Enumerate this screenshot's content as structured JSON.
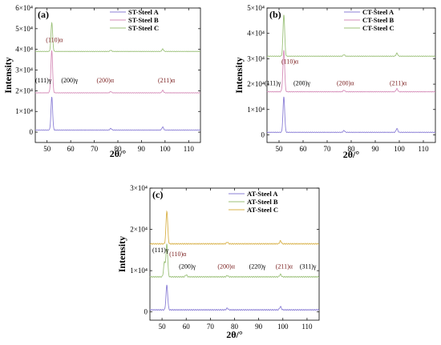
{
  "chart_data": [
    {
      "type": "line",
      "panel_label": "(a)",
      "xlabel": "2θ/°",
      "ylabel": "Intensity",
      "xlim": [
        45,
        115
      ],
      "ylim": [
        -5000,
        60000
      ],
      "x_ticks": [
        "50",
        "60",
        "70",
        "80",
        "90",
        "100",
        "110"
      ],
      "y_ticks": [
        {
          "v": 0,
          "label": "0"
        },
        {
          "v": 10000,
          "label": "1×10⁴"
        },
        {
          "v": 20000,
          "label": "2×10⁴"
        },
        {
          "v": 30000,
          "label": "3×10⁴"
        },
        {
          "v": 40000,
          "label": "4×10⁴"
        },
        {
          "v": 50000,
          "label": "5×10⁴"
        },
        {
          "v": 60000,
          "label": "6×10⁴"
        }
      ],
      "series": [
        {
          "name": "ST-Steel A",
          "color": "#8b7fd6",
          "offset": 1000,
          "peaks": [
            [
              52,
              16000
            ],
            [
              77,
              800
            ],
            [
              99,
              1500
            ]
          ]
        },
        {
          "name": "ST-Steel B",
          "color": "#d58cb8",
          "offset": 19000,
          "peaks": [
            [
              51.5,
              1500
            ],
            [
              52,
              20000
            ],
            [
              77,
              600
            ],
            [
              99,
              1200
            ]
          ]
        },
        {
          "name": "ST-Steel C",
          "color": "#9cc17a",
          "offset": 39000,
          "peaks": [
            [
              52,
              14000
            ],
            [
              77,
              600
            ],
            [
              99,
              1200
            ]
          ]
        }
      ],
      "annotations": [
        {
          "x": 49.5,
          "y": 43500,
          "text": "(110)α",
          "style": "red"
        },
        {
          "x": 45,
          "y": 24000,
          "text": "(111)γ",
          "style": "black"
        },
        {
          "x": 56,
          "y": 24000,
          "text": "(200)γ",
          "style": "black"
        },
        {
          "x": 71,
          "y": 24000,
          "text": "(200)α",
          "style": "red"
        },
        {
          "x": 97,
          "y": 24000,
          "text": "(211)α",
          "style": "red"
        }
      ]
    },
    {
      "type": "line",
      "panel_label": "(b)",
      "xlabel": "2θ/°",
      "ylabel": "Intensity",
      "xlim": [
        45,
        115
      ],
      "ylim": [
        -3000,
        50000
      ],
      "x_ticks": [
        "50",
        "60",
        "70",
        "80",
        "90",
        "100",
        "110"
      ],
      "y_ticks": [
        {
          "v": 0,
          "label": "0"
        },
        {
          "v": 10000,
          "label": "1×10⁴"
        },
        {
          "v": 20000,
          "label": "2×10⁴"
        },
        {
          "v": 30000,
          "label": "3×10⁴"
        },
        {
          "v": 40000,
          "label": "4×10⁴"
        },
        {
          "v": 50000,
          "label": "5×10⁴"
        }
      ],
      "series": [
        {
          "name": "CT-Steel A",
          "color": "#8b7fd6",
          "offset": 1000,
          "peaks": [
            [
              52,
              14000
            ],
            [
              77,
              700
            ],
            [
              99,
              1500
            ]
          ]
        },
        {
          "name": "CT-Steel B",
          "color": "#d58cb8",
          "offset": 17000,
          "peaks": [
            [
              51.5,
              1200
            ],
            [
              52,
              16000
            ],
            [
              77,
              600
            ],
            [
              99,
              1200
            ]
          ]
        },
        {
          "name": "CT-Steel C",
          "color": "#9cc17a",
          "offset": 31000,
          "peaks": [
            [
              52,
              16500
            ],
            [
              77,
              600
            ],
            [
              99,
              1200
            ]
          ]
        }
      ],
      "annotations": [
        {
          "x": 51,
          "y": 28000,
          "text": "(110)α",
          "style": "red"
        },
        {
          "x": 44,
          "y": 19500,
          "text": "(111)γ",
          "style": "black"
        },
        {
          "x": 56,
          "y": 19500,
          "text": "(200)γ",
          "style": "black"
        },
        {
          "x": 74,
          "y": 19500,
          "text": "(200)α",
          "style": "red"
        },
        {
          "x": 96,
          "y": 19500,
          "text": "(211)α",
          "style": "red"
        }
      ]
    },
    {
      "type": "line",
      "panel_label": "(c)",
      "xlabel": "2θ/°",
      "ylabel": "Intensity",
      "xlim": [
        45,
        115
      ],
      "ylim": [
        -2000,
        30000
      ],
      "x_ticks": [
        "50",
        "60",
        "70",
        "80",
        "90",
        "100",
        "110"
      ],
      "y_ticks": [
        {
          "v": 0,
          "label": "0"
        },
        {
          "v": 10000,
          "label": "1×10⁴"
        },
        {
          "v": 20000,
          "label": "2×10⁴"
        },
        {
          "v": 30000,
          "label": "3×10⁴"
        }
      ],
      "series": [
        {
          "name": "AT-Steel A",
          "color": "#8b7fd6",
          "offset": 500,
          "peaks": [
            [
              52,
              6000
            ],
            [
              77,
              400
            ],
            [
              99,
              800
            ]
          ]
        },
        {
          "name": "AT-Steel B",
          "color": "#9cc17a",
          "offset": 8500,
          "peaks": [
            [
              51,
              3500
            ],
            [
              52,
              8000
            ],
            [
              60,
              500
            ],
            [
              77,
              300
            ],
            [
              99,
              600
            ]
          ]
        },
        {
          "name": "AT-Steel C",
          "color": "#d9b24a",
          "offset": 16500,
          "peaks": [
            [
              52,
              8000
            ],
            [
              77,
              400
            ],
            [
              99,
              700
            ]
          ]
        }
      ],
      "annotations": [
        {
          "x": 46,
          "y": 14500,
          "text": "(111)γ",
          "style": "black"
        },
        {
          "x": 53,
          "y": 13500,
          "text": "(110)α",
          "style": "red"
        },
        {
          "x": 57,
          "y": 10500,
          "text": "(200)γ",
          "style": "black"
        },
        {
          "x": 73,
          "y": 10500,
          "text": "(200)α",
          "style": "red"
        },
        {
          "x": 86,
          "y": 10500,
          "text": "(220)γ",
          "style": "black"
        },
        {
          "x": 97,
          "y": 10500,
          "text": "(211)α",
          "style": "red"
        },
        {
          "x": 107,
          "y": 10500,
          "text": "(311)γ",
          "style": "black"
        }
      ]
    }
  ]
}
